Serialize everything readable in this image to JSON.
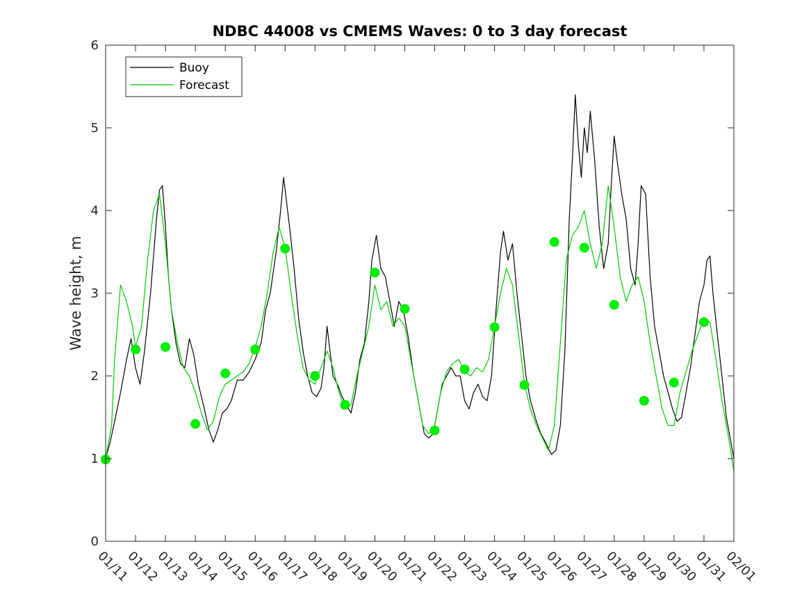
{
  "chart_data": {
    "type": "line",
    "title": "NDBC 44008 vs CMEMS Waves: 0 to 3 day forecast",
    "ylabel": "Wave height, m",
    "xlabel": "",
    "ylim": [
      0,
      6
    ],
    "xlim": [
      0,
      21
    ],
    "yticks": [
      "0",
      "1",
      "2",
      "3",
      "4",
      "5",
      "6"
    ],
    "xtick_labels": [
      "01/11",
      "01/12",
      "01/13",
      "01/14",
      "01/15",
      "01/16",
      "01/17",
      "01/18",
      "01/19",
      "01/20",
      "01/21",
      "01/22",
      "01/23",
      "01/24",
      "01/25",
      "01/26",
      "01/27",
      "01/28",
      "01/29",
      "01/30",
      "01/31",
      "02/01"
    ],
    "x_unit": "days since 01/11 00:00",
    "legend": {
      "position": "top-left",
      "entries": [
        {
          "label": "Buoy",
          "color": "#000000"
        },
        {
          "label": "Forecast",
          "color": "#00cc00"
        }
      ]
    },
    "colors": {
      "buoy": "#000000",
      "forecast": "#00cc00",
      "forecast_marker": "#00ee00"
    },
    "series": [
      {
        "name": "Buoy",
        "points": [
          [
            0,
            1.0
          ],
          [
            0.15,
            1.2
          ],
          [
            0.3,
            1.45
          ],
          [
            0.5,
            1.8
          ],
          [
            0.7,
            2.2
          ],
          [
            0.85,
            2.45
          ],
          [
            1.0,
            2.1
          ],
          [
            1.15,
            1.9
          ],
          [
            1.3,
            2.3
          ],
          [
            1.5,
            3.0
          ],
          [
            1.7,
            3.9
          ],
          [
            1.8,
            4.25
          ],
          [
            1.9,
            4.3
          ],
          [
            2.0,
            3.8
          ],
          [
            2.1,
            3.2
          ],
          [
            2.2,
            2.8
          ],
          [
            2.35,
            2.4
          ],
          [
            2.5,
            2.15
          ],
          [
            2.65,
            2.1
          ],
          [
            2.8,
            2.45
          ],
          [
            2.95,
            2.25
          ],
          [
            3.1,
            1.9
          ],
          [
            3.3,
            1.6
          ],
          [
            3.45,
            1.35
          ],
          [
            3.6,
            1.2
          ],
          [
            3.75,
            1.35
          ],
          [
            3.9,
            1.55
          ],
          [
            4.05,
            1.6
          ],
          [
            4.2,
            1.7
          ],
          [
            4.4,
            1.95
          ],
          [
            4.6,
            1.95
          ],
          [
            4.8,
            2.05
          ],
          [
            5.0,
            2.2
          ],
          [
            5.2,
            2.4
          ],
          [
            5.35,
            2.8
          ],
          [
            5.5,
            3.0
          ],
          [
            5.7,
            3.5
          ],
          [
            5.85,
            4.0
          ],
          [
            5.95,
            4.4
          ],
          [
            6.05,
            4.1
          ],
          [
            6.15,
            3.8
          ],
          [
            6.3,
            3.3
          ],
          [
            6.45,
            2.7
          ],
          [
            6.6,
            2.3
          ],
          [
            6.75,
            2.0
          ],
          [
            6.9,
            1.8
          ],
          [
            7.05,
            1.75
          ],
          [
            7.2,
            1.85
          ],
          [
            7.3,
            2.1
          ],
          [
            7.4,
            2.6
          ],
          [
            7.5,
            2.3
          ],
          [
            7.6,
            2.0
          ],
          [
            7.75,
            1.9
          ],
          [
            7.9,
            1.75
          ],
          [
            8.05,
            1.65
          ],
          [
            8.2,
            1.55
          ],
          [
            8.35,
            1.8
          ],
          [
            8.5,
            2.2
          ],
          [
            8.65,
            2.4
          ],
          [
            8.8,
            2.9
          ],
          [
            8.9,
            3.4
          ],
          [
            9.05,
            3.7
          ],
          [
            9.2,
            3.3
          ],
          [
            9.35,
            3.2
          ],
          [
            9.5,
            2.9
          ],
          [
            9.65,
            2.6
          ],
          [
            9.8,
            2.9
          ],
          [
            9.95,
            2.8
          ],
          [
            10.1,
            2.5
          ],
          [
            10.3,
            2.0
          ],
          [
            10.5,
            1.6
          ],
          [
            10.65,
            1.3
          ],
          [
            10.8,
            1.25
          ],
          [
            10.95,
            1.3
          ],
          [
            11.1,
            1.6
          ],
          [
            11.25,
            1.9
          ],
          [
            11.4,
            2.0
          ],
          [
            11.55,
            2.1
          ],
          [
            11.7,
            2.0
          ],
          [
            11.85,
            2.0
          ],
          [
            12.0,
            1.7
          ],
          [
            12.15,
            1.6
          ],
          [
            12.3,
            1.8
          ],
          [
            12.45,
            1.9
          ],
          [
            12.6,
            1.75
          ],
          [
            12.75,
            1.7
          ],
          [
            12.9,
            2.0
          ],
          [
            13.05,
            2.8
          ],
          [
            13.2,
            3.5
          ],
          [
            13.3,
            3.75
          ],
          [
            13.45,
            3.4
          ],
          [
            13.6,
            3.6
          ],
          [
            13.75,
            3.0
          ],
          [
            13.9,
            2.5
          ],
          [
            14.05,
            2.0
          ],
          [
            14.2,
            1.7
          ],
          [
            14.4,
            1.45
          ],
          [
            14.55,
            1.3
          ],
          [
            14.7,
            1.2
          ],
          [
            14.9,
            1.05
          ],
          [
            15.05,
            1.1
          ],
          [
            15.2,
            1.4
          ],
          [
            15.35,
            2.3
          ],
          [
            15.5,
            3.9
          ],
          [
            15.6,
            4.6
          ],
          [
            15.7,
            5.4
          ],
          [
            15.8,
            4.8
          ],
          [
            15.9,
            4.4
          ],
          [
            16.0,
            5.0
          ],
          [
            16.1,
            4.7
          ],
          [
            16.2,
            5.2
          ],
          [
            16.35,
            4.6
          ],
          [
            16.5,
            3.8
          ],
          [
            16.65,
            3.3
          ],
          [
            16.8,
            3.6
          ],
          [
            16.9,
            4.3
          ],
          [
            17.0,
            4.9
          ],
          [
            17.1,
            4.6
          ],
          [
            17.25,
            4.2
          ],
          [
            17.4,
            3.9
          ],
          [
            17.55,
            3.3
          ],
          [
            17.7,
            3.1
          ],
          [
            17.8,
            3.6
          ],
          [
            17.9,
            4.3
          ],
          [
            18.05,
            4.2
          ],
          [
            18.2,
            3.2
          ],
          [
            18.35,
            2.6
          ],
          [
            18.5,
            2.3
          ],
          [
            18.65,
            2.0
          ],
          [
            18.8,
            1.8
          ],
          [
            18.95,
            1.6
          ],
          [
            19.1,
            1.45
          ],
          [
            19.25,
            1.5
          ],
          [
            19.4,
            1.8
          ],
          [
            19.55,
            2.1
          ],
          [
            19.7,
            2.5
          ],
          [
            19.85,
            2.9
          ],
          [
            20.0,
            3.1
          ],
          [
            20.1,
            3.4
          ],
          [
            20.2,
            3.45
          ],
          [
            20.3,
            3.0
          ],
          [
            20.45,
            2.5
          ],
          [
            20.6,
            2.0
          ],
          [
            20.75,
            1.5
          ],
          [
            20.9,
            1.2
          ],
          [
            21.0,
            1.0
          ]
        ]
      },
      {
        "name": "Forecast",
        "points": [
          [
            0,
            1.0
          ],
          [
            0.2,
            1.4
          ],
          [
            0.3,
            2.2
          ],
          [
            0.5,
            3.1
          ],
          [
            0.7,
            2.9
          ],
          [
            0.9,
            2.6
          ],
          [
            1.0,
            2.35
          ],
          [
            1.2,
            2.6
          ],
          [
            1.4,
            3.4
          ],
          [
            1.6,
            4.0
          ],
          [
            1.8,
            4.2
          ],
          [
            2.0,
            3.6
          ],
          [
            2.2,
            2.8
          ],
          [
            2.4,
            2.4
          ],
          [
            2.6,
            2.1
          ],
          [
            2.8,
            2.0
          ],
          [
            3.0,
            1.8
          ],
          [
            3.2,
            1.55
          ],
          [
            3.4,
            1.35
          ],
          [
            3.6,
            1.45
          ],
          [
            3.8,
            1.75
          ],
          [
            4.0,
            1.9
          ],
          [
            4.2,
            1.95
          ],
          [
            4.4,
            2.0
          ],
          [
            4.6,
            2.05
          ],
          [
            4.8,
            2.15
          ],
          [
            5.0,
            2.35
          ],
          [
            5.2,
            2.6
          ],
          [
            5.4,
            3.0
          ],
          [
            5.6,
            3.5
          ],
          [
            5.8,
            3.8
          ],
          [
            6.0,
            3.55
          ],
          [
            6.2,
            3.0
          ],
          [
            6.4,
            2.5
          ],
          [
            6.6,
            2.1
          ],
          [
            6.8,
            1.95
          ],
          [
            7.0,
            1.9
          ],
          [
            7.2,
            2.1
          ],
          [
            7.4,
            2.3
          ],
          [
            7.6,
            2.1
          ],
          [
            7.8,
            1.8
          ],
          [
            8.0,
            1.6
          ],
          [
            8.2,
            1.65
          ],
          [
            8.4,
            2.0
          ],
          [
            8.6,
            2.3
          ],
          [
            8.8,
            2.6
          ],
          [
            9.0,
            3.1
          ],
          [
            9.2,
            2.8
          ],
          [
            9.4,
            2.9
          ],
          [
            9.6,
            2.6
          ],
          [
            9.8,
            2.7
          ],
          [
            10.0,
            2.6
          ],
          [
            10.2,
            2.2
          ],
          [
            10.4,
            1.8
          ],
          [
            10.6,
            1.4
          ],
          [
            10.8,
            1.3
          ],
          [
            11.0,
            1.4
          ],
          [
            11.2,
            1.8
          ],
          [
            11.4,
            2.05
          ],
          [
            11.6,
            2.15
          ],
          [
            11.8,
            2.2
          ],
          [
            12.0,
            2.05
          ],
          [
            12.2,
            2.0
          ],
          [
            12.4,
            2.1
          ],
          [
            12.6,
            2.05
          ],
          [
            12.8,
            2.2
          ],
          [
            13.0,
            2.6
          ],
          [
            13.2,
            3.0
          ],
          [
            13.4,
            3.3
          ],
          [
            13.6,
            3.1
          ],
          [
            13.8,
            2.5
          ],
          [
            14.0,
            1.9
          ],
          [
            14.2,
            1.6
          ],
          [
            14.4,
            1.4
          ],
          [
            14.6,
            1.25
          ],
          [
            14.8,
            1.1
          ],
          [
            15.0,
            1.4
          ],
          [
            15.2,
            2.4
          ],
          [
            15.4,
            3.4
          ],
          [
            15.6,
            3.7
          ],
          [
            15.8,
            3.8
          ],
          [
            16.0,
            4.0
          ],
          [
            16.2,
            3.6
          ],
          [
            16.4,
            3.3
          ],
          [
            16.6,
            3.6
          ],
          [
            16.8,
            4.3
          ],
          [
            17.0,
            3.8
          ],
          [
            17.2,
            3.2
          ],
          [
            17.4,
            2.9
          ],
          [
            17.6,
            3.1
          ],
          [
            17.8,
            3.2
          ],
          [
            18.0,
            2.9
          ],
          [
            18.2,
            2.4
          ],
          [
            18.4,
            2.0
          ],
          [
            18.6,
            1.6
          ],
          [
            18.8,
            1.4
          ],
          [
            19.0,
            1.4
          ],
          [
            19.2,
            1.8
          ],
          [
            19.4,
            2.05
          ],
          [
            19.6,
            2.3
          ],
          [
            19.8,
            2.5
          ],
          [
            20.0,
            2.7
          ],
          [
            20.2,
            2.65
          ],
          [
            20.4,
            2.2
          ],
          [
            20.6,
            1.7
          ],
          [
            20.8,
            1.3
          ],
          [
            21.0,
            0.85
          ]
        ]
      }
    ],
    "forecast_starts": [
      [
        0,
        0.99
      ],
      [
        1.0,
        2.32
      ],
      [
        2.0,
        2.35
      ],
      [
        3.0,
        1.42
      ],
      [
        4.0,
        2.03
      ],
      [
        5.0,
        2.32
      ],
      [
        6.0,
        3.54
      ],
      [
        7.0,
        2.0
      ],
      [
        8.0,
        1.65
      ],
      [
        9.0,
        3.25
      ],
      [
        10.0,
        2.81
      ],
      [
        11.0,
        1.34
      ],
      [
        12.0,
        2.08
      ],
      [
        13.0,
        2.59
      ],
      [
        14.0,
        1.89
      ],
      [
        15.0,
        3.62
      ],
      [
        16.0,
        3.55
      ],
      [
        17.0,
        2.86
      ],
      [
        18.0,
        1.7
      ],
      [
        19.0,
        1.92
      ],
      [
        20.0,
        2.65
      ]
    ]
  }
}
